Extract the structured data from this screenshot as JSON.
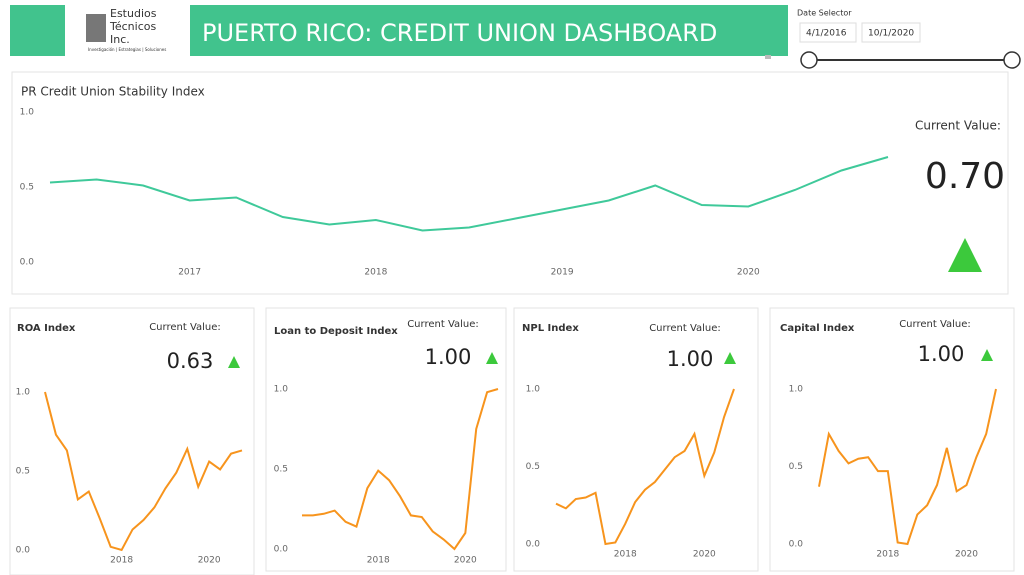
{
  "header": {
    "title": "PUERTO RICO:  CREDIT UNION DASHBOARD",
    "logo_line1": "Estudios",
    "logo_line2": "Técnicos",
    "logo_line3": "Inc.",
    "logo_tagline": "Investigación | Estrategias | Soluciones"
  },
  "date_selector": {
    "label": "Date Selector",
    "start": "4/1/2016",
    "end": "10/1/2020"
  },
  "chart_data": [
    {
      "type": "line",
      "title": "PR Credit Union Stability Index",
      "current_value_label": "Current Value:",
      "current_value": "0.70",
      "color": "#3fc99a",
      "x": [
        2016.25,
        2016.5,
        2016.75,
        2017,
        2017.25,
        2017.5,
        2017.75,
        2018,
        2018.25,
        2018.5,
        2018.75,
        2019,
        2019.25,
        2019.5,
        2019.75,
        2020,
        2020.25,
        2020.5,
        2020.75
      ],
      "values": [
        0.53,
        0.55,
        0.51,
        0.41,
        0.43,
        0.3,
        0.25,
        0.28,
        0.21,
        0.23,
        0.29,
        0.35,
        0.41,
        0.51,
        0.38,
        0.37,
        0.48,
        0.61,
        0.7
      ],
      "xlim": [
        2016.25,
        2020.75
      ],
      "xticks": [
        2017,
        2018,
        2019,
        2020
      ],
      "ylim": [
        0,
        1
      ],
      "yticks": [
        {
          "value": 0,
          "label": "0.0"
        },
        {
          "value": 0.5,
          "label": "0.5"
        },
        {
          "value": 1,
          "label": "1.0"
        }
      ]
    },
    {
      "type": "line",
      "title": "ROA Index",
      "current_value_label": "Current Value:",
      "current_value": "0.63",
      "color": "#f7941d",
      "x": [
        2016.25,
        2016.5,
        2016.75,
        2017,
        2017.25,
        2017.5,
        2017.75,
        2018,
        2018.25,
        2018.5,
        2018.75,
        2019,
        2019.25,
        2019.5,
        2019.75,
        2020,
        2020.25,
        2020.5,
        2020.75
      ],
      "values": [
        1.0,
        0.73,
        0.63,
        0.32,
        0.37,
        0.2,
        0.02,
        0.0,
        0.13,
        0.19,
        0.27,
        0.39,
        0.49,
        0.64,
        0.4,
        0.56,
        0.51,
        0.61,
        0.63
      ],
      "xlim": [
        2016.25,
        2020.75
      ],
      "xticks": [
        2018,
        2020
      ],
      "ylim": [
        0,
        1
      ],
      "yticks": [
        {
          "value": 0,
          "label": "0.0"
        },
        {
          "value": 0.5,
          "label": "0.5"
        },
        {
          "value": 1,
          "label": "1.0"
        }
      ]
    },
    {
      "type": "line",
      "title": "Loan to Deposit Index",
      "current_value_label": "Current Value:",
      "current_value": "1.00",
      "color": "#f7941d",
      "x": [
        2016.25,
        2016.5,
        2016.75,
        2017,
        2017.25,
        2017.5,
        2017.75,
        2018,
        2018.25,
        2018.5,
        2018.75,
        2019,
        2019.25,
        2019.5,
        2019.75,
        2020,
        2020.25,
        2020.5,
        2020.75
      ],
      "values": [
        0.21,
        0.21,
        0.22,
        0.24,
        0.17,
        0.14,
        0.38,
        0.49,
        0.43,
        0.33,
        0.21,
        0.2,
        0.11,
        0.06,
        0.0,
        0.1,
        0.75,
        0.98,
        1.0
      ],
      "xlim": [
        2016.25,
        2020.75
      ],
      "xticks": [
        2018,
        2020
      ],
      "ylim": [
        0,
        1
      ],
      "yticks": [
        {
          "value": 0,
          "label": "0.0"
        },
        {
          "value": 0.5,
          "label": "0.5"
        },
        {
          "value": 1,
          "label": "1.0"
        }
      ]
    },
    {
      "type": "line",
      "title": "NPL Index",
      "current_value_label": "Current Value:",
      "current_value": "1.00",
      "color": "#f7941d",
      "x": [
        2016.25,
        2016.5,
        2016.75,
        2017,
        2017.25,
        2017.5,
        2017.75,
        2018,
        2018.25,
        2018.5,
        2018.75,
        2019,
        2019.25,
        2019.5,
        2019.75,
        2020,
        2020.25,
        2020.5,
        2020.75
      ],
      "values": [
        0.26,
        0.23,
        0.29,
        0.3,
        0.33,
        0.0,
        0.01,
        0.13,
        0.27,
        0.35,
        0.4,
        0.48,
        0.56,
        0.6,
        0.71,
        0.44,
        0.59,
        0.82,
        1.0
      ],
      "xlim": [
        2016.25,
        2020.75
      ],
      "xticks": [
        2018,
        2020
      ],
      "ylim": [
        0,
        1
      ],
      "yticks": [
        {
          "value": 0,
          "label": "0.0"
        },
        {
          "value": 0.5,
          "label": "0.5"
        },
        {
          "value": 1,
          "label": "1.0"
        }
      ]
    },
    {
      "type": "line",
      "title": "Capital Index",
      "current_value_label": "Current Value:",
      "current_value": "1.00",
      "color": "#f7941d",
      "x": [
        2016.25,
        2016.5,
        2016.75,
        2017,
        2017.25,
        2017.5,
        2017.75,
        2018,
        2018.25,
        2018.5,
        2018.75,
        2019,
        2019.25,
        2019.5,
        2019.75,
        2020,
        2020.25,
        2020.5,
        2020.75
      ],
      "values": [
        0.37,
        0.71,
        0.6,
        0.52,
        0.55,
        0.56,
        0.47,
        0.47,
        0.01,
        0.0,
        0.19,
        0.25,
        0.38,
        0.62,
        0.34,
        0.38,
        0.56,
        0.71,
        1.0
      ],
      "xlim": [
        2016.25,
        2020.75
      ],
      "xticks": [
        2018,
        2020
      ],
      "ylim": [
        0,
        1
      ],
      "yticks": [
        {
          "value": 0,
          "label": "0.0"
        },
        {
          "value": 0.5,
          "label": "0.5"
        },
        {
          "value": 1,
          "label": "1.0"
        }
      ]
    }
  ]
}
